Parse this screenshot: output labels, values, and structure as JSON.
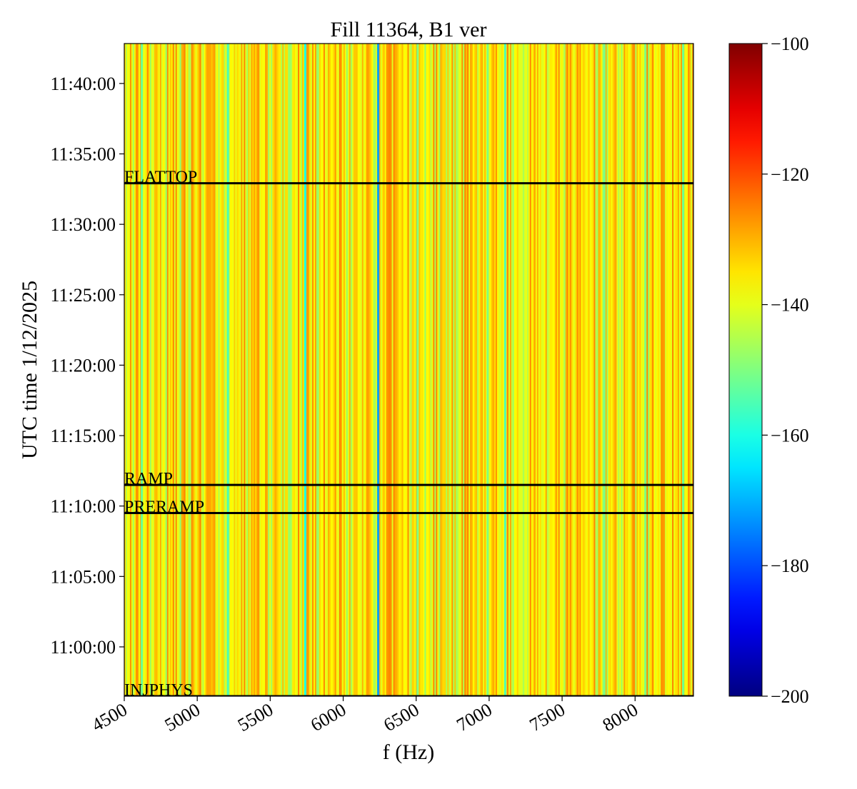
{
  "chart_data": {
    "type": "heatmap",
    "title": "Fill 11364, B1 ver",
    "xlabel": "f (Hz)",
    "ylabel": "UTC time 1/12/2025",
    "xlim": [
      4500,
      8400
    ],
    "ylim": [
      "10:56:30",
      "11:42:50"
    ],
    "x_ticks": [
      4500,
      5000,
      5500,
      6000,
      6500,
      7000,
      7500,
      8000
    ],
    "x_tick_labels": [
      "4500",
      "5000",
      "5500",
      "6000",
      "6500",
      "7000",
      "7500",
      "8000"
    ],
    "y_ticks": [
      "11:00:00",
      "11:05:00",
      "11:10:00",
      "11:15:00",
      "11:20:00",
      "11:25:00",
      "11:30:00",
      "11:35:00",
      "11:40:00"
    ],
    "phase_markers": [
      {
        "label": "INJPHYS",
        "time": "10:56:30"
      },
      {
        "label": "PRERAMP",
        "time": "11:09:30"
      },
      {
        "label": "RAMP",
        "time": "11:11:30"
      },
      {
        "label": "FLATTOP",
        "time": "11:32:55"
      }
    ],
    "colorbar": {
      "colormap": "jet",
      "min": -200,
      "max": -100,
      "ticks": [
        -100,
        -120,
        -140,
        -160,
        -180,
        -200
      ],
      "tick_labels": [
        "−100",
        "−120",
        "−140",
        "−160",
        "−180",
        "−200"
      ]
    },
    "spectrum": {
      "description_units": "power level (colorbar units) per frequency bin, constant over time",
      "typical_range": [
        -141,
        -125
      ],
      "notable_lines": [
        {
          "f": 4620,
          "value": -152
        },
        {
          "f": 5210,
          "value": -155
        },
        {
          "f": 5740,
          "value": -160
        },
        {
          "f": 6240,
          "value": -172
        },
        {
          "f": 6510,
          "value": -150
        },
        {
          "f": 6990,
          "value": -150
        },
        {
          "f": 7110,
          "value": -155
        },
        {
          "f": 7790,
          "value": -150
        },
        {
          "f": 8070,
          "value": -150
        },
        {
          "f": 8330,
          "value": -152
        }
      ]
    }
  }
}
